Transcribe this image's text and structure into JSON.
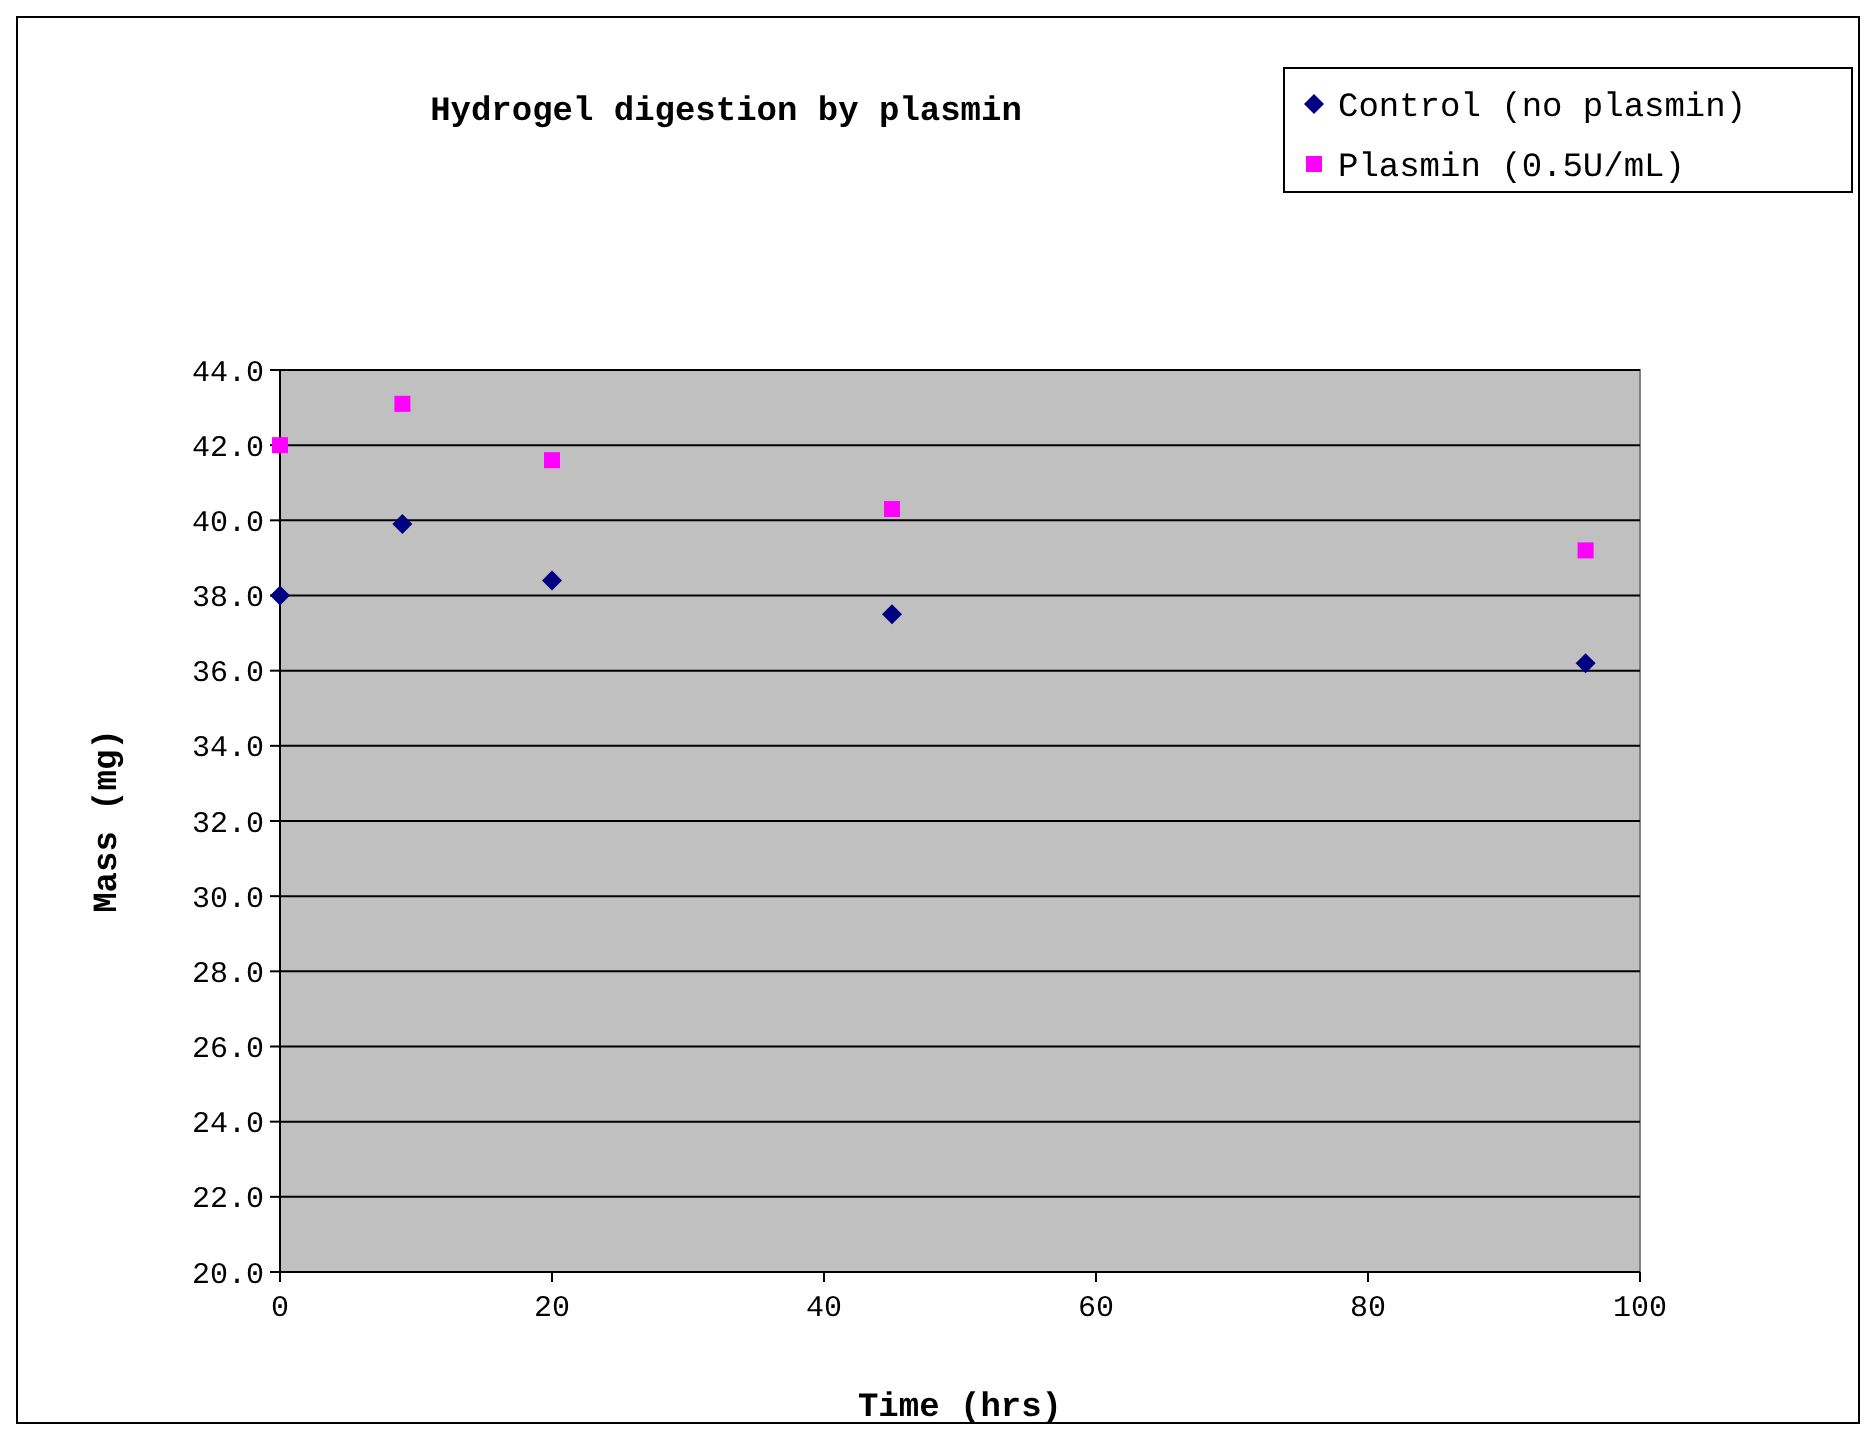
{
  "chart_data": {
    "type": "scatter",
    "title": "Hydrogel digestion by plasmin",
    "xlabel": "Time (hrs)",
    "ylabel": "Mass (mg)",
    "series": [
      {
        "name": "Control (no plasmin)",
        "color": "#000080",
        "marker": "diamond",
        "x": [
          0,
          9,
          20,
          45,
          96
        ],
        "values": [
          38.0,
          39.9,
          38.4,
          37.5,
          36.2
        ]
      },
      {
        "name": "Plasmin (0.5U/mL)",
        "color": "#ff00ff",
        "marker": "square",
        "x": [
          0,
          9,
          20,
          45,
          96
        ],
        "values": [
          42.0,
          43.1,
          41.6,
          40.3,
          39.2
        ]
      }
    ],
    "xlim": [
      0,
      100
    ],
    "xticks": [
      0,
      20,
      40,
      60,
      80,
      100
    ],
    "ylim": [
      20,
      44
    ],
    "yticks": [
      {
        "value": 20,
        "label": "20.0"
      },
      {
        "value": 22,
        "label": "22.0"
      },
      {
        "value": 24,
        "label": "24.0"
      },
      {
        "value": 26,
        "label": "26.0"
      },
      {
        "value": 28,
        "label": "28.0"
      },
      {
        "value": 30,
        "label": "30.0"
      },
      {
        "value": 32,
        "label": "32.0"
      },
      {
        "value": 34,
        "label": "34.0"
      },
      {
        "value": 36,
        "label": "36.0"
      },
      {
        "value": 38,
        "label": "38.0"
      },
      {
        "value": 40,
        "label": "40.0"
      },
      {
        "value": 42,
        "label": "42.0"
      },
      {
        "value": 44,
        "label": "44.0"
      }
    ],
    "grid": "y",
    "legend": "top right"
  }
}
